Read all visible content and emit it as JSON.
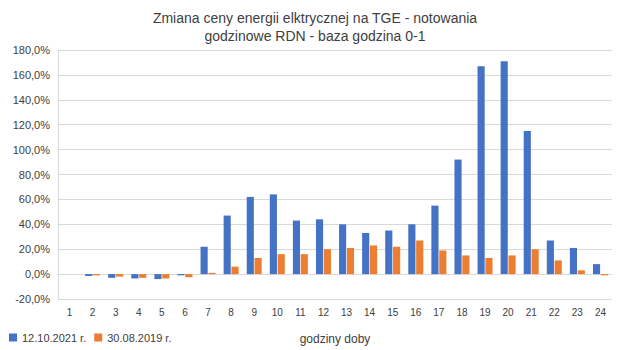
{
  "chart_data": {
    "type": "bar",
    "title": "Zmiana ceny energii elktrycznej na TGE - notowania\ngodzinowe RDN - baza godzina 0-1",
    "x_label": "godziny doby",
    "categories": [
      "1",
      "2",
      "3",
      "4",
      "5",
      "6",
      "7",
      "8",
      "9",
      "10",
      "11",
      "12",
      "13",
      "14",
      "15",
      "16",
      "17",
      "18",
      "19",
      "20",
      "21",
      "22",
      "23",
      "24"
    ],
    "series": [
      {
        "name": "12.10.2021 r.",
        "color": "#4472c4",
        "values": [
          0,
          -1.5,
          -3,
          -3.5,
          -4,
          -1,
          22,
          47,
          62,
          64,
          43,
          44,
          40,
          33,
          35,
          40,
          55,
          92,
          167,
          171,
          115,
          27,
          21,
          8
        ]
      },
      {
        "name": "30.08.2019 r.",
        "color": "#ed7d31",
        "values": [
          0,
          -1,
          -2,
          -3,
          -3.5,
          -2.5,
          1,
          6,
          13,
          16,
          16,
          20,
          21,
          23,
          22,
          27,
          19,
          15,
          13,
          15,
          20,
          11,
          3,
          -1
        ]
      }
    ],
    "ylim": [
      -20,
      180
    ],
    "yticks": [
      {
        "value": -20,
        "label": "-20,0%"
      },
      {
        "value": 0,
        "label": "0,0%"
      },
      {
        "value": 20,
        "label": "20,0%"
      },
      {
        "value": 40,
        "label": "40,0%"
      },
      {
        "value": 60,
        "label": "60,0%"
      },
      {
        "value": 80,
        "label": "80,0%"
      },
      {
        "value": 100,
        "label": "100,0%"
      },
      {
        "value": 120,
        "label": "120,0%"
      },
      {
        "value": 140,
        "label": "140,0%"
      },
      {
        "value": 160,
        "label": "160,0%"
      },
      {
        "value": 180,
        "label": "180,0%"
      }
    ],
    "grid": true,
    "legend": "bottom-left",
    "data_labels": false
  }
}
